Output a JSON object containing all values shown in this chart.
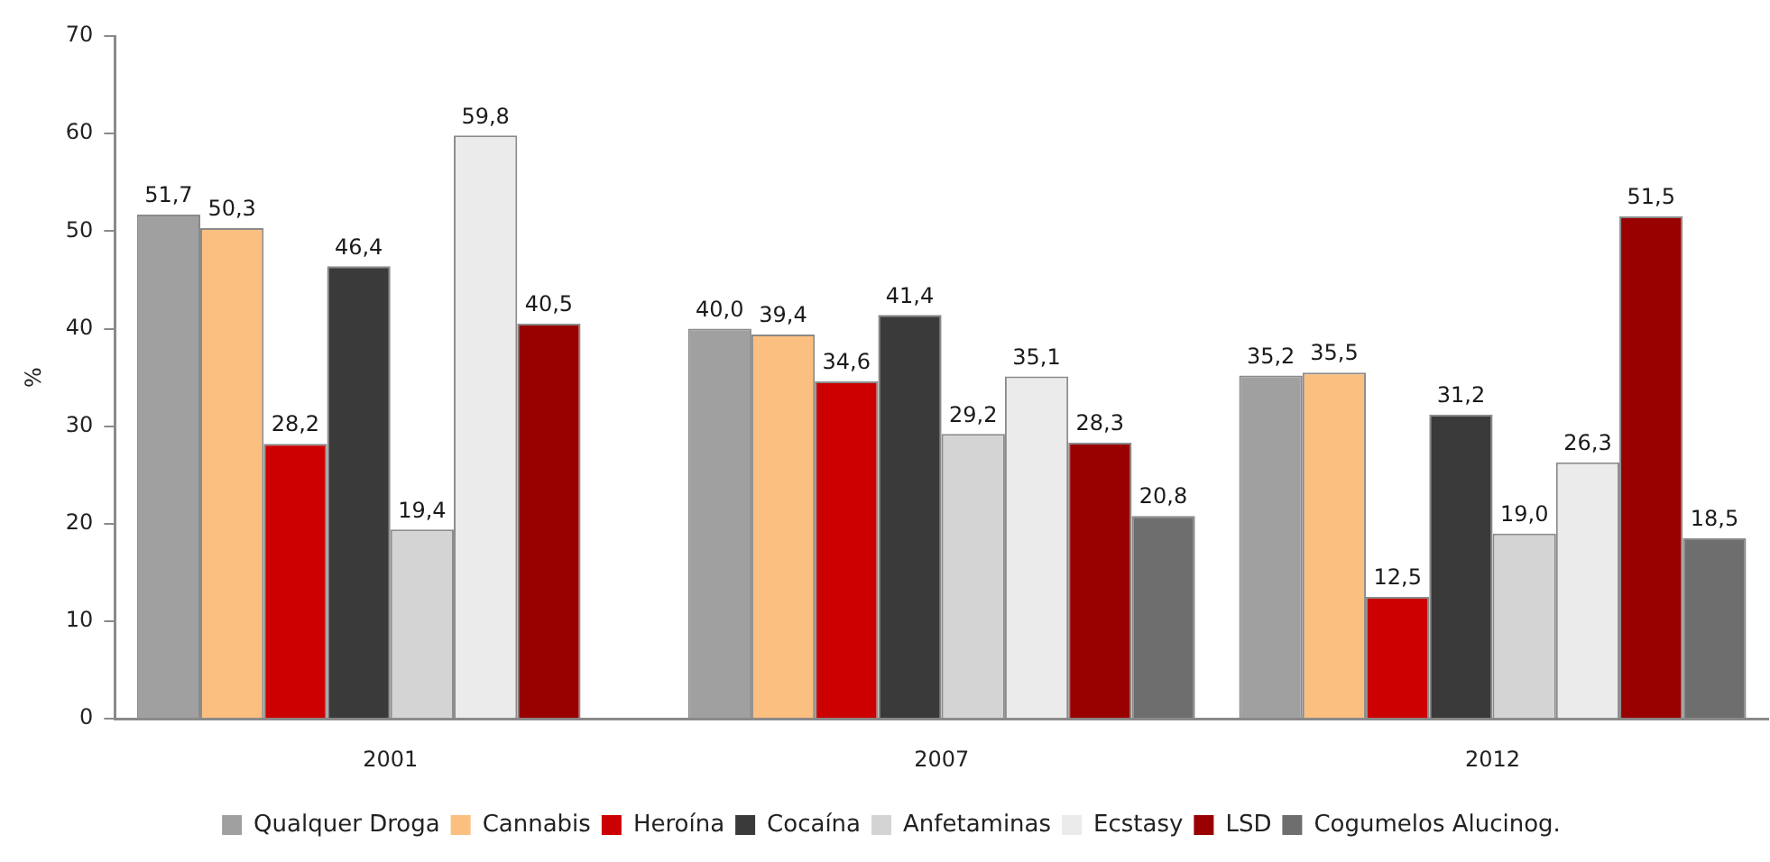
{
  "chart_data": {
    "type": "bar",
    "ylabel": "%",
    "categories": [
      "2001",
      "2007",
      "2012"
    ],
    "series": [
      {
        "name": "Qualquer Droga",
        "color": "#a0a0a0",
        "values": [
          51.7,
          40.0,
          35.2
        ],
        "value_labels": [
          "51,7",
          "40,0",
          "35,2"
        ]
      },
      {
        "name": "Cannabis",
        "color": "#fbbf80",
        "values": [
          50.3,
          39.4,
          35.5
        ],
        "value_labels": [
          "50,3",
          "39,4",
          "35,5"
        ]
      },
      {
        "name": "Heroína",
        "color": "#cc0000",
        "values": [
          28.2,
          34.6,
          12.5
        ],
        "value_labels": [
          "28,2",
          "34,6",
          "12,5"
        ]
      },
      {
        "name": "Cocaína",
        "color": "#3a3a3a",
        "values": [
          46.4,
          41.4,
          31.2
        ],
        "value_labels": [
          "46,4",
          "41,4",
          "31,2"
        ]
      },
      {
        "name": "Anfetaminas",
        "color": "#d4d4d4",
        "values": [
          19.4,
          29.2,
          19.0
        ],
        "value_labels": [
          "19,4",
          "29,2",
          "19,0"
        ]
      },
      {
        "name": "Ecstasy",
        "color": "#ebebeb",
        "values": [
          59.8,
          35.1,
          26.3
        ],
        "value_labels": [
          "59,8",
          "35,1",
          "26,3"
        ]
      },
      {
        "name": "LSD",
        "color": "#990000",
        "values": [
          40.5,
          28.3,
          51.5
        ],
        "value_labels": [
          "40,5",
          "28,3",
          "51,5"
        ]
      },
      {
        "name": "Cogumelos Alucinog.",
        "color": "#6e6e6e",
        "values": [
          null,
          20.8,
          18.5
        ],
        "value_labels": [
          null,
          "20,8",
          "18,5"
        ]
      }
    ],
    "ylim": [
      0,
      70
    ],
    "yticks": [
      0,
      10,
      20,
      30,
      40,
      50,
      60,
      70
    ],
    "grid": false,
    "legend": "bottom"
  }
}
